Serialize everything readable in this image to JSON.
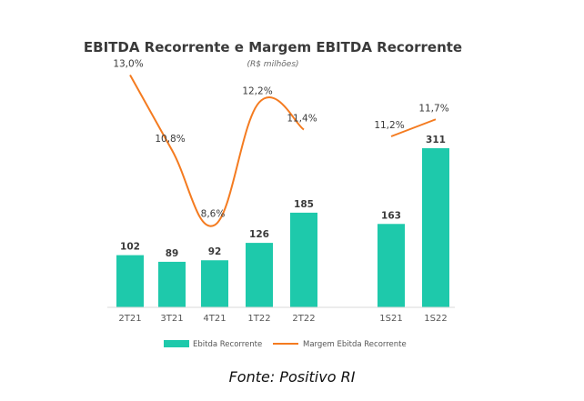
{
  "chart_data": {
    "type": "bar",
    "title": "EBITDA Recorrente e Margem EBITDA Recorrente",
    "subtitle": "(R$ milhões)",
    "categories": [
      "2T21",
      "3T21",
      "4T21",
      "1T22",
      "2T22",
      "1S21",
      "1S22"
    ],
    "series": [
      {
        "name": "Ebitda Recorrente",
        "type": "bar",
        "values": [
          102,
          89,
          92,
          126,
          185,
          163,
          311
        ],
        "color": "#1ec9ab"
      },
      {
        "name": "Margem Ebitda Recorrente",
        "type": "line",
        "values": [
          13.0,
          10.8,
          8.6,
          12.2,
          11.4,
          11.2,
          11.7
        ],
        "labels": [
          "13,0%",
          "10,8%",
          "8,6%",
          "12,2%",
          "11,4%",
          "11,2%",
          "11,7%"
        ],
        "color": "#f47b20"
      }
    ],
    "line_segments": [
      [
        0,
        4
      ],
      [
        5,
        6
      ]
    ],
    "legend_position": "bottom"
  },
  "source": "Fonte: Positivo RI"
}
